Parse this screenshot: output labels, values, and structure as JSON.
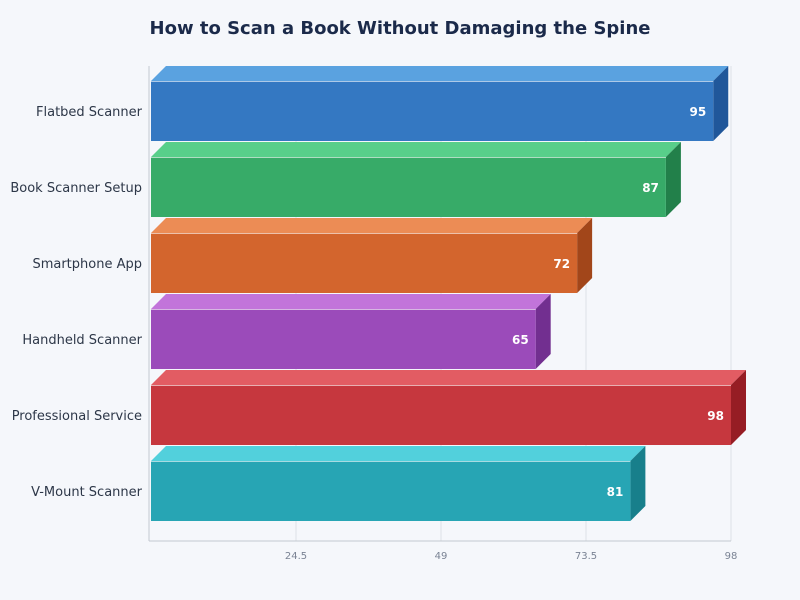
{
  "chart_data": {
    "type": "bar",
    "orientation": "horizontal",
    "title": "How to Scan a Book Without Damaging the Spine",
    "categories": [
      "Flatbed Scanner",
      "Book Scanner Setup",
      "Smartphone App",
      "Handheld Scanner",
      "Professional Service",
      "V-Mount Scanner"
    ],
    "values": [
      95,
      87,
      72,
      65,
      98,
      81
    ],
    "colors": [
      {
        "front": "#3478c2",
        "top": "#5aa2e0",
        "side": "#20579a"
      },
      {
        "front": "#37ab68",
        "top": "#58cf8a",
        "side": "#22804a"
      },
      {
        "front": "#d3652d",
        "top": "#ec8c55",
        "side": "#a2461a"
      },
      {
        "front": "#9b4bba",
        "top": "#c274da",
        "side": "#722f90"
      },
      {
        "front": "#c6373e",
        "top": "#e25c63",
        "side": "#961d24"
      },
      {
        "front": "#27a5b4",
        "top": "#52d0dc",
        "side": "#187f8b"
      }
    ],
    "xlim": [
      0,
      98
    ],
    "xticks": [
      "24.5",
      "49",
      "73.5",
      "98"
    ],
    "xlabel": "",
    "ylabel": "",
    "grid": true
  }
}
